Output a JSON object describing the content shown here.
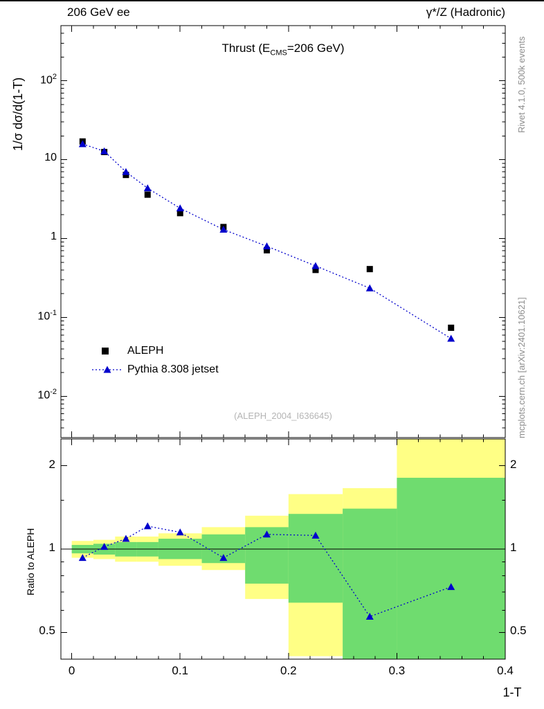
{
  "header": {
    "left": "206 GeV ee",
    "right": "γ*/Z (Hadronic)"
  },
  "side_notes": {
    "top": "Rivet 4.1.0, 500k events",
    "bottom": "mcplots.cern.ch [arXiv:2401.10621]"
  },
  "title": {
    "pre": "Thrust (E",
    "sub": "CMS",
    "post": "=206 GeV)"
  },
  "watermark": "(ALEPH_2004_I636645)",
  "chart_data": {
    "type": "line",
    "x_label": "1-T",
    "x_range": [
      -0.01,
      0.4
    ],
    "x_ticks": [
      0,
      0.1,
      0.2,
      0.3,
      0.4
    ],
    "bin_edges": [
      0,
      0.02,
      0.04,
      0.06,
      0.08,
      0.12,
      0.16,
      0.2,
      0.25,
      0.3,
      0.4
    ],
    "main": {
      "y_label": "1/σ dσ/d(1-T)",
      "y_scale": "log",
      "y_range": [
        0.003,
        500
      ],
      "y_ticks": [
        {
          "text": "10",
          "sup": "2",
          "value": 100
        },
        {
          "text": "10",
          "value": 10
        },
        {
          "text": "1",
          "value": 1
        },
        {
          "text": "10",
          "sup": "-1",
          "value": 0.1
        },
        {
          "text": "10",
          "sup": "-2",
          "value": 0.01
        }
      ],
      "x": [
        0.01,
        0.03,
        0.05,
        0.07,
        0.1,
        0.14,
        0.18,
        0.225,
        0.275,
        0.35
      ],
      "series": [
        {
          "name": "ALEPH",
          "marker": "square",
          "color": "#000000",
          "values": [
            17.0,
            12.5,
            6.4,
            3.6,
            2.1,
            1.4,
            0.71,
            0.4,
            0.41,
            0.074
          ]
        },
        {
          "name": "Pythia 8.308 jetset",
          "marker": "triangle",
          "line": "dotted",
          "color": "#0000cc",
          "values": [
            15.8,
            12.8,
            7.0,
            4.35,
            2.42,
            1.3,
            0.8,
            0.45,
            0.235,
            0.054
          ]
        }
      ]
    },
    "ratio": {
      "y_label": "Ratio to ALEPH",
      "y_scale": "log",
      "y_range": [
        0.4,
        2.5
      ],
      "y_ticks": [
        {
          "text": "2",
          "value": 2
        },
        {
          "text": "1",
          "value": 1
        },
        {
          "text": "0.5",
          "value": 0.5
        }
      ],
      "y_minor_ticks": [
        0.6,
        0.7,
        0.8,
        0.9,
        1.5
      ],
      "reference": 1,
      "values": [
        0.93,
        1.02,
        1.09,
        1.21,
        1.15,
        0.93,
        1.13,
        1.12,
        0.57,
        0.73
      ],
      "bands": {
        "yellow": {
          "color": "#ffff85",
          "lo": [
            0.93,
            0.92,
            0.9,
            0.9,
            0.87,
            0.84,
            0.66,
            0.41,
            0.4,
            0.4
          ],
          "hi": [
            1.07,
            1.08,
            1.11,
            1.11,
            1.14,
            1.2,
            1.32,
            1.58,
            1.66,
            2.5
          ]
        },
        "green": {
          "color": "#6fdc6f",
          "lo": [
            0.965,
            0.955,
            0.94,
            0.94,
            0.92,
            0.89,
            0.75,
            0.64,
            0.4,
            0.4
          ],
          "hi": [
            1.035,
            1.045,
            1.06,
            1.06,
            1.09,
            1.13,
            1.2,
            1.34,
            1.4,
            1.81
          ]
        }
      }
    }
  }
}
